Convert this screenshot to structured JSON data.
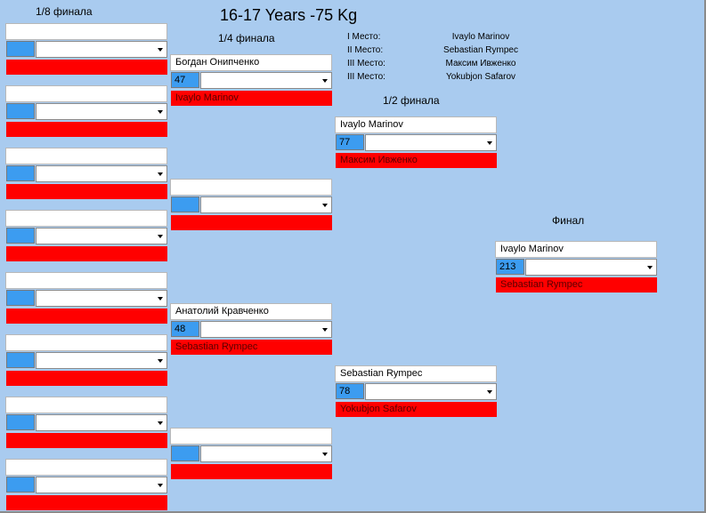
{
  "title": "16-17 Years -75 Kg",
  "places": [
    {
      "label": "I Место:",
      "name": "Ivaylo Marinov"
    },
    {
      "label": "II Место:",
      "name": "Sebastian Rympec"
    },
    {
      "label": "III Место:",
      "name": "Максим Ивженко"
    },
    {
      "label": "III Место:",
      "name": "Yokubjon Safarov"
    }
  ],
  "rounds": [
    {
      "label": "1/8 финала",
      "matches": [
        {},
        {},
        {},
        {},
        {},
        {},
        {},
        {}
      ]
    },
    {
      "label": "1/4 финала",
      "matches": [
        {
          "top": "Богдан Онипченко",
          "score": 47,
          "bottom": "Ivaylo Marinov"
        },
        {},
        {
          "top": "Анатолий Кравченко",
          "score": 48,
          "bottom": "Sebastian Rympec"
        },
        {}
      ]
    },
    {
      "label": "1/2 финала",
      "matches": [
        {
          "top": "Ivaylo Marinov",
          "score": 77,
          "bottom": "Максим Ивженко"
        },
        {
          "top": "Sebastian Rympec",
          "score": 78,
          "bottom": "Yokubjon Safarov"
        }
      ]
    },
    {
      "label": "Финал",
      "matches": [
        {
          "top": "Ivaylo Marinov",
          "score": 213,
          "bottom": "Sebastian Rympec"
        }
      ]
    }
  ]
}
